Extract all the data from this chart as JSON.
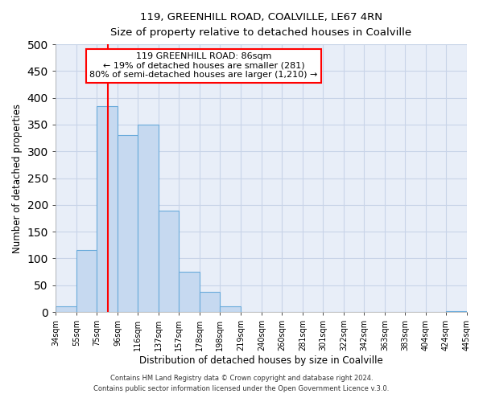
{
  "title": "119, GREENHILL ROAD, COALVILLE, LE67 4RN",
  "subtitle": "Size of property relative to detached houses in Coalville",
  "xlabel": "Distribution of detached houses by size in Coalville",
  "ylabel": "Number of detached properties",
  "bar_edges": [
    34,
    55,
    75,
    96,
    116,
    137,
    157,
    178,
    198,
    219,
    240,
    260,
    281,
    301,
    322,
    342,
    363,
    383,
    404,
    424,
    445
  ],
  "bar_heights": [
    10,
    115,
    385,
    330,
    350,
    190,
    75,
    38,
    10,
    0,
    0,
    0,
    0,
    0,
    0,
    0,
    0,
    0,
    0,
    2
  ],
  "bar_color": "#c6d9f0",
  "bar_edge_color": "#6aabdb",
  "ylim": [
    0,
    500
  ],
  "yticks": [
    0,
    50,
    100,
    150,
    200,
    250,
    300,
    350,
    400,
    450,
    500
  ],
  "property_line_x": 86,
  "property_line_color": "red",
  "annotation_title": "119 GREENHILL ROAD: 86sqm",
  "annotation_line1": "← 19% of detached houses are smaller (281)",
  "annotation_line2": "80% of semi-detached houses are larger (1,210) →",
  "annotation_box_color": "white",
  "annotation_box_edge": "red",
  "footer1": "Contains HM Land Registry data © Crown copyright and database right 2024.",
  "footer2": "Contains public sector information licensed under the Open Government Licence v.3.0.",
  "tick_labels": [
    "34sqm",
    "55sqm",
    "75sqm",
    "96sqm",
    "116sqm",
    "137sqm",
    "157sqm",
    "178sqm",
    "198sqm",
    "219sqm",
    "240sqm",
    "260sqm",
    "281sqm",
    "301sqm",
    "322sqm",
    "342sqm",
    "363sqm",
    "383sqm",
    "404sqm",
    "424sqm",
    "445sqm"
  ],
  "grid_color": "#c8d4e8",
  "background_color": "#ffffff",
  "ax_background_color": "#e8eef8"
}
